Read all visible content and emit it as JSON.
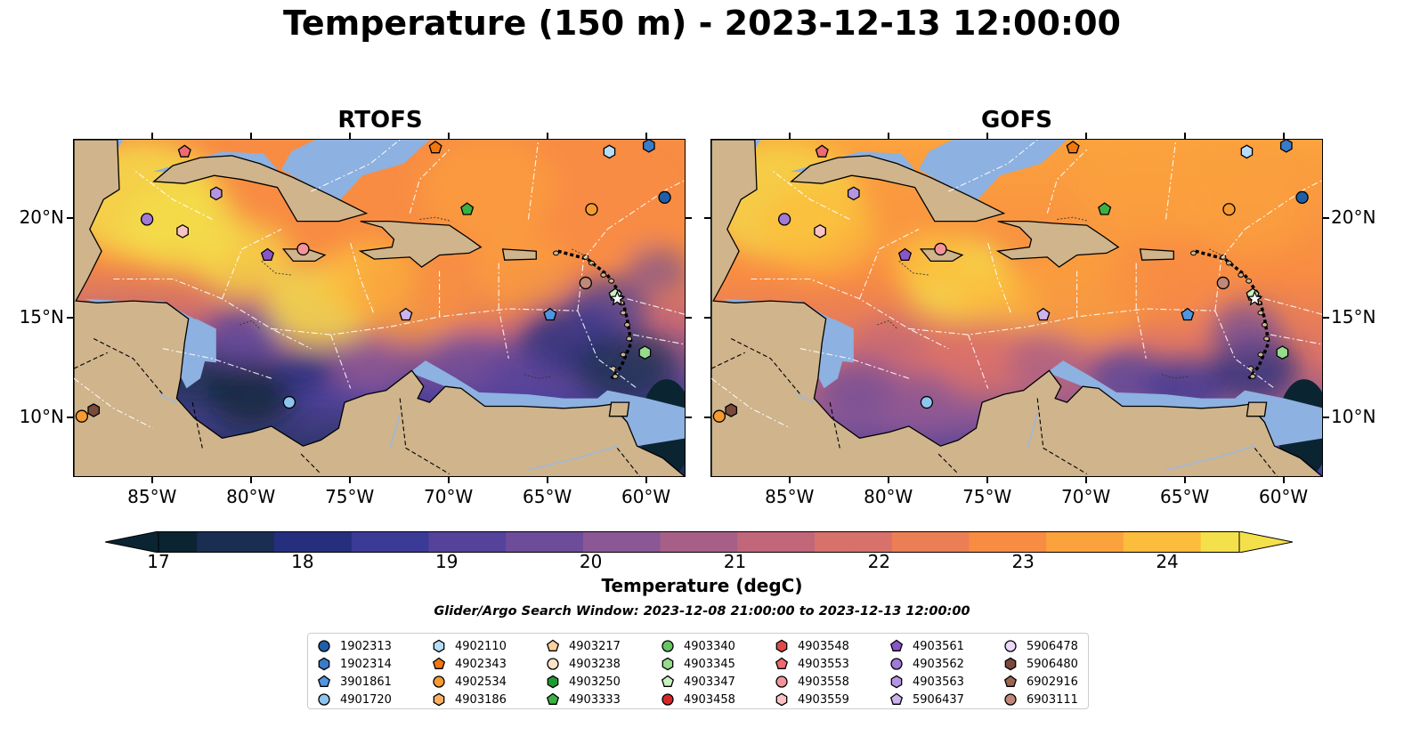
{
  "title": "Temperature (150 m) - 2023-12-13 12:00:00",
  "panels": [
    {
      "title": "RTOFS",
      "variant": "rtofs"
    },
    {
      "title": "GOFS",
      "variant": "gofs"
    }
  ],
  "map_extent": {
    "lon": [
      -89,
      -58
    ],
    "lat": [
      7,
      24
    ]
  },
  "lon_ticks": [
    "85°W",
    "80°W",
    "75°W",
    "70°W",
    "65°W",
    "60°W"
  ],
  "lon_tick_values": [
    -85,
    -80,
    -75,
    -70,
    -65,
    -60
  ],
  "lat_ticks": [
    "20°N",
    "15°N",
    "10°N"
  ],
  "lat_tick_values": [
    20,
    15,
    10
  ],
  "colorbar": {
    "label": "Temperature (degC)",
    "ticks": [
      "17",
      "18",
      "19",
      "20",
      "21",
      "22",
      "23",
      "24"
    ],
    "min": 16.75,
    "max": 24.5,
    "step": 0.25,
    "colors": [
      "#0b2432",
      "#0b2432",
      "#1a2e52",
      "#1a2e52",
      "#252f7e",
      "#252f7e",
      "#3b3a96",
      "#3b3a96",
      "#55439b",
      "#55439b",
      "#6d4c9a",
      "#6d4c9a",
      "#8b5794",
      "#8b5794",
      "#a75f88",
      "#a75f88",
      "#c26679",
      "#c26679",
      "#d9716b",
      "#d9716b",
      "#ec7e55",
      "#ec7e55",
      "#f88c43",
      "#f88c43",
      "#fba23d",
      "#fba23d",
      "#fcbc3c",
      "#fcbc3c",
      "#f4e04a",
      "#f4e04a"
    ]
  },
  "search_window": "Glider/Argo Search Window: 2023-12-08 21:00:00 to 2023-12-13 12:00:00",
  "legend": [
    {
      "id": "1902313",
      "shape": "circle",
      "color": "#1f5fa8"
    },
    {
      "id": "1902314",
      "shape": "hexagon",
      "color": "#3a7bc8"
    },
    {
      "id": "3901861",
      "shape": "pentagon",
      "color": "#4f95e0"
    },
    {
      "id": "4901720",
      "shape": "circle",
      "color": "#8fc4ef"
    },
    {
      "id": "4902110",
      "shape": "hexagon",
      "color": "#b6dcf7"
    },
    {
      "id": "4902343",
      "shape": "pentagon",
      "color": "#f07810"
    },
    {
      "id": "4902534",
      "shape": "circle",
      "color": "#f79a30"
    },
    {
      "id": "4903186",
      "shape": "hexagon",
      "color": "#fbb060"
    },
    {
      "id": "4903217",
      "shape": "pentagon",
      "color": "#fdd0a0"
    },
    {
      "id": "4903238",
      "shape": "circle",
      "color": "#fde2c8"
    },
    {
      "id": "4903250",
      "shape": "hexagon",
      "color": "#1f9a30"
    },
    {
      "id": "4903333",
      "shape": "pentagon",
      "color": "#3cb043"
    },
    {
      "id": "4903340",
      "shape": "circle",
      "color": "#66c560"
    },
    {
      "id": "4903345",
      "shape": "hexagon",
      "color": "#96dc8c"
    },
    {
      "id": "4903347",
      "shape": "pentagon",
      "color": "#c8f0c0"
    },
    {
      "id": "4903458",
      "shape": "circle",
      "color": "#d62728"
    },
    {
      "id": "4903548",
      "shape": "hexagon",
      "color": "#de4a4a"
    },
    {
      "id": "4903553",
      "shape": "pentagon",
      "color": "#ec6a70"
    },
    {
      "id": "4903558",
      "shape": "circle",
      "color": "#f4949a"
    },
    {
      "id": "4903559",
      "shape": "hexagon",
      "color": "#f9c3c6"
    },
    {
      "id": "4903561",
      "shape": "pentagon",
      "color": "#8a55c8"
    },
    {
      "id": "4903562",
      "shape": "circle",
      "color": "#a07ad6"
    },
    {
      "id": "4903563",
      "shape": "hexagon",
      "color": "#b595e2"
    },
    {
      "id": "5906437",
      "shape": "pentagon",
      "color": "#cbb4ee"
    },
    {
      "id": "5906478",
      "shape": "circle",
      "color": "#ead9f8"
    },
    {
      "id": "5906480",
      "shape": "hexagon",
      "color": "#7a4a3c"
    },
    {
      "id": "6902916",
      "shape": "pentagon",
      "color": "#9a6650"
    },
    {
      "id": "6903111",
      "shape": "circle",
      "color": "#c08878"
    }
  ],
  "float_positions": [
    {
      "id": "1902313",
      "lon": -59.1,
      "lat": 21.1
    },
    {
      "id": "4902534",
      "lon": -62.8,
      "lat": 20.5
    },
    {
      "id": "4903333",
      "lon": -69.1,
      "lat": 20.5
    },
    {
      "id": "4903562",
      "lon": -85.3,
      "lat": 20.0
    },
    {
      "id": "4903559",
      "lon": -83.5,
      "lat": 19.4
    },
    {
      "id": "4903558",
      "lon": -77.4,
      "lat": 18.5
    },
    {
      "id": "4903561",
      "lon": -79.2,
      "lat": 18.2
    },
    {
      "id": "4903563",
      "lon": -81.8,
      "lat": 21.3
    },
    {
      "id": "5906437",
      "lon": -72.2,
      "lat": 15.2
    },
    {
      "id": "3901861",
      "lon": -64.9,
      "lat": 15.2
    },
    {
      "id": "6903111",
      "lon": -63.1,
      "lat": 16.8
    },
    {
      "id": "4903347",
      "lon": -61.6,
      "lat": 16.2
    },
    {
      "id": "4903345",
      "lon": -60.1,
      "lat": 13.3
    },
    {
      "id": "4901720",
      "lon": -78.1,
      "lat": 10.8
    },
    {
      "id": "4902110",
      "lon": -61.9,
      "lat": 23.4
    },
    {
      "id": "4903553",
      "lon": -83.4,
      "lat": 23.4
    },
    {
      "id": "4902343",
      "lon": -70.7,
      "lat": 23.6
    },
    {
      "id": "4902534",
      "lon": -88.6,
      "lat": 10.1
    },
    {
      "id": "5906480",
      "lon": -88.0,
      "lat": 10.4
    },
    {
      "id": "1902314",
      "lon": -59.9,
      "lat": 23.7
    }
  ]
}
